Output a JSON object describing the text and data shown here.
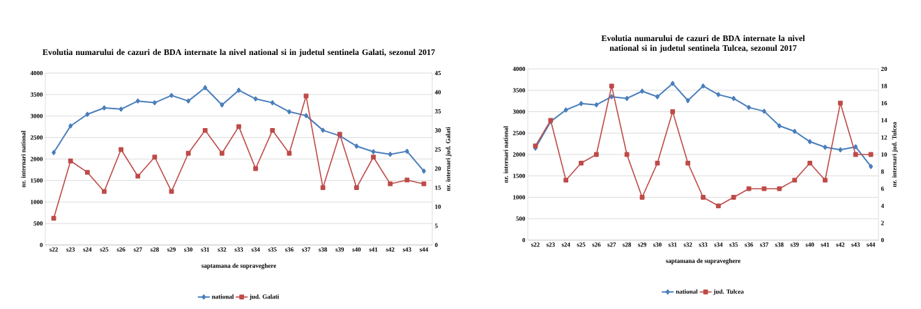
{
  "chart_data": [
    {
      "type": "line",
      "title": "Evolutia numarului de cazuri de BDA internate la nivel national si in judetul sentinela Galati, sezonul 2017",
      "xlabel": "saptamana de supraveghere",
      "ylabel": "nr. internari national",
      "y2label": "nr. internari jud. Galati",
      "categories": [
        "s22",
        "s23",
        "s24",
        "s25",
        "s26",
        "s27",
        "s28",
        "s29",
        "s30",
        "s31",
        "s32",
        "s33",
        "s34",
        "s35",
        "s36",
        "s37",
        "s38",
        "s39",
        "s40",
        "s41",
        "s42",
        "s43",
        "s44"
      ],
      "series": [
        {
          "name": "national",
          "color": "#4a7ebb",
          "marker": "diamond",
          "values": [
            2150,
            2770,
            3040,
            3190,
            3160,
            3350,
            3310,
            3480,
            3350,
            3660,
            3260,
            3600,
            3400,
            3310,
            3100,
            3010,
            2670,
            2540,
            2300,
            2170,
            2110,
            2180,
            1720
          ]
        },
        {
          "name": "jud. Galati",
          "color": "#be4b48",
          "marker": "square",
          "axis": "y2",
          "values": [
            7,
            22,
            19,
            14,
            25,
            18,
            23,
            14,
            24,
            30,
            24,
            31,
            20,
            30,
            24,
            39,
            15,
            29,
            15,
            23,
            16,
            17,
            16
          ]
        }
      ],
      "ylim": [
        0,
        4000
      ],
      "yticks": [
        0,
        500,
        1000,
        1500,
        2000,
        2500,
        3000,
        3500,
        4000
      ],
      "y2lim": [
        0,
        45
      ],
      "y2ticks": [
        0,
        5,
        10,
        15,
        20,
        25,
        30,
        35,
        40,
        45
      ],
      "grid": "y",
      "legend": "bottom",
      "line_style": "solid"
    },
    {
      "type": "line",
      "title": "Evolutia numarului de cazuri de BDA internate la nivel national si in judetul sentinela Tulcea, sezonul 2017",
      "xlabel": "saptamana de supraveghere",
      "ylabel": "nr. internari national",
      "y2label": "nr. internari jud. Tulcea",
      "categories": [
        "s22",
        "s23",
        "s24",
        "s25",
        "s26",
        "s27",
        "s28",
        "s29",
        "s30",
        "s31",
        "s32",
        "s33",
        "s34",
        "s35",
        "s36",
        "s37",
        "s38",
        "s39",
        "s40",
        "s41",
        "s42",
        "s43",
        "s44"
      ],
      "series": [
        {
          "name": "national",
          "color": "#4a7ebb",
          "marker": "diamond",
          "values": [
            2150,
            2770,
            3040,
            3190,
            3160,
            3350,
            3310,
            3480,
            3350,
            3660,
            3260,
            3600,
            3400,
            3310,
            3100,
            3010,
            2670,
            2540,
            2300,
            2170,
            2110,
            2180,
            1720
          ]
        },
        {
          "name": "jud. Tulcea",
          "color": "#be4b48",
          "marker": "square",
          "axis": "y2",
          "values": [
            11,
            14,
            7,
            9,
            10,
            18,
            10,
            5,
            9,
            15,
            9,
            5,
            4,
            5,
            6,
            6,
            6,
            7,
            9,
            7,
            16,
            10,
            10
          ]
        }
      ],
      "ylim": [
        0,
        4000
      ],
      "yticks": [
        0,
        500,
        1000,
        1500,
        2000,
        2500,
        3000,
        3500,
        4000
      ],
      "y2lim": [
        0,
        20
      ],
      "y2ticks": [
        0,
        2,
        4,
        6,
        8,
        10,
        12,
        14,
        16,
        18,
        20
      ],
      "grid": "y",
      "legend": "bottom",
      "line_style": "solid"
    }
  ]
}
